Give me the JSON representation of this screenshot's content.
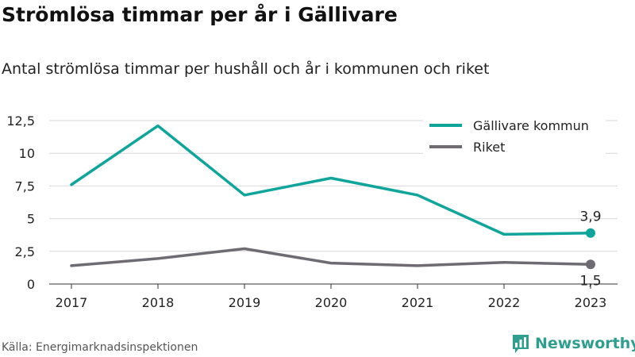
{
  "header": {
    "title": "Strömlösa timmar per år i Gällivare",
    "subtitle": "Antal strömlösa timmar per hushåll och år i kommunen och riket"
  },
  "footer": {
    "source": "Källa: Energimarknadsinspektionen",
    "brand": "Newsworthy",
    "brand_color": "#2e9e8f"
  },
  "chart_data": {
    "type": "line",
    "x": [
      "2017",
      "2018",
      "2019",
      "2020",
      "2021",
      "2022",
      "2023"
    ],
    "series": [
      {
        "name": "Gällivare kommun",
        "color": "#10a59a",
        "values": [
          7.6,
          12.1,
          6.8,
          8.1,
          6.8,
          3.8,
          3.9
        ],
        "end_label": "3,9"
      },
      {
        "name": "Riket",
        "color": "#6e6c72",
        "values": [
          1.4,
          1.95,
          2.7,
          1.6,
          1.4,
          1.65,
          1.5
        ],
        "end_label": "1,5"
      }
    ],
    "yticks": [
      "0",
      "2,5",
      "5",
      "7,5",
      "10",
      "12,5"
    ],
    "ylim": [
      0,
      12.5
    ],
    "grid": true,
    "legend": "top-right"
  }
}
